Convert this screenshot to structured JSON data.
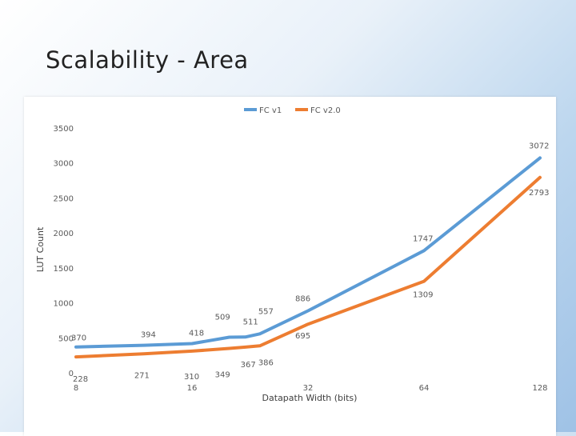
{
  "slide": {
    "title": "Scalability - Area"
  },
  "chart_data": {
    "type": "line",
    "title": "",
    "xlabel": "Datapath Width (bits)",
    "ylabel": "LUT Count",
    "x": [
      8,
      12,
      16,
      20,
      22,
      24,
      32,
      64,
      128
    ],
    "x_tick_labels": [
      "8",
      "16",
      "32",
      "64",
      "128"
    ],
    "x_ticks": [
      8,
      16,
      32,
      64,
      128
    ],
    "y_ticks": [
      0,
      500,
      1000,
      1500,
      2000,
      2500,
      3000,
      3500
    ],
    "ylim": [
      0,
      3500
    ],
    "grid": false,
    "legend": "top",
    "series": [
      {
        "name": "FC v1",
        "color": "#5b9bd5",
        "values": [
          370,
          394,
          418,
          509,
          511,
          557,
          886,
          1747,
          3072
        ],
        "labels": [
          "370",
          "394",
          "418",
          "509",
          "511",
          "557",
          "886",
          "1747",
          "3072"
        ]
      },
      {
        "name": "FC v2.0",
        "color": "#ed7d31",
        "values": [
          228,
          271,
          310,
          349,
          367,
          386,
          695,
          1309,
          2793
        ],
        "labels": [
          "228",
          "271",
          "310",
          "349",
          "367",
          "386",
          "695",
          "1309",
          "2793"
        ]
      }
    ]
  }
}
